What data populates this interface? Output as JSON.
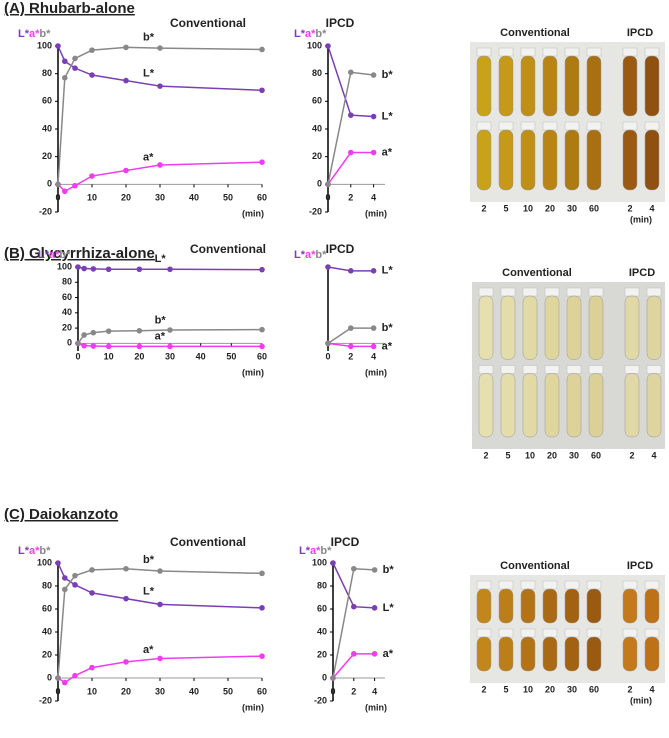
{
  "panels": [
    {
      "title": "(A) Rhubarb-alone",
      "photo": {
        "title_left": "Conventional",
        "title_right": "IPCD",
        "labels_left": [
          "2",
          "5",
          "10",
          "20",
          "30",
          "60"
        ],
        "labels_right": [
          "2",
          "4"
        ],
        "unit": "(min)"
      }
    },
    {
      "title": "(B) Glycyrrhiza-alone",
      "photo": {
        "title_left": "Conventional",
        "title_right": "IPCD",
        "labels_left": [
          "2",
          "5",
          "10",
          "20",
          "30",
          "60"
        ],
        "labels_right": [
          "2",
          "4"
        ]
      }
    },
    {
      "title": "(C) Daiokanzoto",
      "photo": {
        "title_left": "Conventional",
        "title_right": "IPCD",
        "labels_left": [
          "2",
          "5",
          "10",
          "20",
          "30",
          "60"
        ],
        "labels_right": [
          "2",
          "4"
        ],
        "unit": "(min)"
      }
    }
  ],
  "chart_data": [
    {
      "type": "line",
      "title": "Conventional",
      "xlabel": "(min)",
      "x": [
        0,
        2,
        5,
        10,
        20,
        30,
        60
      ],
      "xlim": [
        0,
        60
      ],
      "xticks": [
        0,
        10,
        20,
        30,
        40,
        50,
        60
      ],
      "ylim": [
        -20,
        100
      ],
      "yticks": [
        -20,
        0,
        20,
        40,
        60,
        80,
        100
      ],
      "series": [
        {
          "name": "L*",
          "color": "#7b3fb5",
          "values": [
            100,
            89,
            84,
            79,
            75,
            71,
            68
          ]
        },
        {
          "name": "a*",
          "color": "#f03cf0",
          "values": [
            0,
            -5,
            -1,
            6,
            10,
            14,
            16
          ]
        },
        {
          "name": "b*",
          "color": "#888888",
          "values": [
            0,
            77,
            91,
            97,
            99,
            98.5,
            97.5
          ]
        }
      ]
    },
    {
      "type": "line",
      "title": "IPCD",
      "xlabel": "(min)",
      "x": [
        0,
        2,
        4
      ],
      "xlim": [
        0,
        5
      ],
      "xticks": [
        0,
        2,
        4
      ],
      "ylim": [
        -20,
        100
      ],
      "yticks": [
        -20,
        0,
        20,
        40,
        60,
        80,
        100
      ],
      "series": [
        {
          "name": "L*",
          "color": "#7b3fb5",
          "values": [
            100,
            50,
            49
          ]
        },
        {
          "name": "a*",
          "color": "#f03cf0",
          "values": [
            0,
            23,
            23
          ]
        },
        {
          "name": "b*",
          "color": "#888888",
          "values": [
            0,
            81,
            79
          ]
        }
      ]
    },
    {
      "type": "line",
      "title": "Conventional",
      "xlabel": "(min)",
      "x": [
        0,
        2,
        5,
        10,
        20,
        30,
        60
      ],
      "xlim": [
        0,
        60
      ],
      "xticks": [
        0,
        10,
        20,
        30,
        40,
        50,
        60
      ],
      "ylim": [
        -10,
        100
      ],
      "yticks": [
        0,
        20,
        40,
        60,
        80,
        100
      ],
      "series": [
        {
          "name": "L*",
          "color": "#7b3fb5",
          "values": [
            100,
            98,
            97.5,
            97,
            97,
            97,
            96.5
          ]
        },
        {
          "name": "a*",
          "color": "#f03cf0",
          "values": [
            0,
            -3,
            -3.5,
            -4,
            -4,
            -4,
            -4
          ]
        },
        {
          "name": "b*",
          "color": "#888888",
          "values": [
            0,
            11,
            14,
            16,
            16.5,
            17.5,
            18
          ]
        }
      ]
    },
    {
      "type": "line",
      "title": "IPCD",
      "xlabel": "(min)",
      "x": [
        0,
        2,
        4
      ],
      "xlim": [
        0,
        5
      ],
      "xticks": [
        0,
        2,
        4
      ],
      "ylim": [
        -10,
        100
      ],
      "series": [
        {
          "name": "L*",
          "color": "#7b3fb5",
          "values": [
            100,
            95,
            95
          ]
        },
        {
          "name": "a*",
          "color": "#f03cf0",
          "values": [
            0,
            -4,
            -4
          ]
        },
        {
          "name": "b*",
          "color": "#888888",
          "values": [
            0,
            20,
            20
          ]
        }
      ]
    },
    {
      "type": "line",
      "title": "Conventional",
      "xlabel": "(min)",
      "x": [
        0,
        2,
        5,
        10,
        20,
        30,
        60
      ],
      "xlim": [
        0,
        60
      ],
      "xticks": [
        0,
        10,
        20,
        30,
        40,
        50,
        60
      ],
      "ylim": [
        -20,
        100
      ],
      "yticks": [
        -20,
        0,
        20,
        40,
        60,
        80,
        100
      ],
      "series": [
        {
          "name": "L*",
          "color": "#7b3fb5",
          "values": [
            100,
            87,
            81,
            74,
            69,
            64,
            61
          ]
        },
        {
          "name": "a*",
          "color": "#f03cf0",
          "values": [
            0,
            -4,
            2,
            9,
            14,
            17,
            19
          ]
        },
        {
          "name": "b*",
          "color": "#888888",
          "values": [
            0,
            77,
            89,
            94,
            95,
            93,
            91
          ]
        }
      ]
    },
    {
      "type": "line",
      "title": "IPCD",
      "xlabel": "(min)",
      "x": [
        0,
        2,
        4
      ],
      "xlim": [
        0,
        5
      ],
      "xticks": [
        0,
        2,
        4
      ],
      "ylim": [
        -20,
        100
      ],
      "yticks": [
        -20,
        0,
        20,
        40,
        60,
        80,
        100
      ],
      "series": [
        {
          "name": "L*",
          "color": "#7b3fb5",
          "values": [
            100,
            62,
            61
          ]
        },
        {
          "name": "a*",
          "color": "#f03cf0",
          "values": [
            0,
            21,
            21
          ]
        },
        {
          "name": "b*",
          "color": "#888888",
          "values": [
            0,
            95,
            94
          ]
        }
      ]
    }
  ]
}
